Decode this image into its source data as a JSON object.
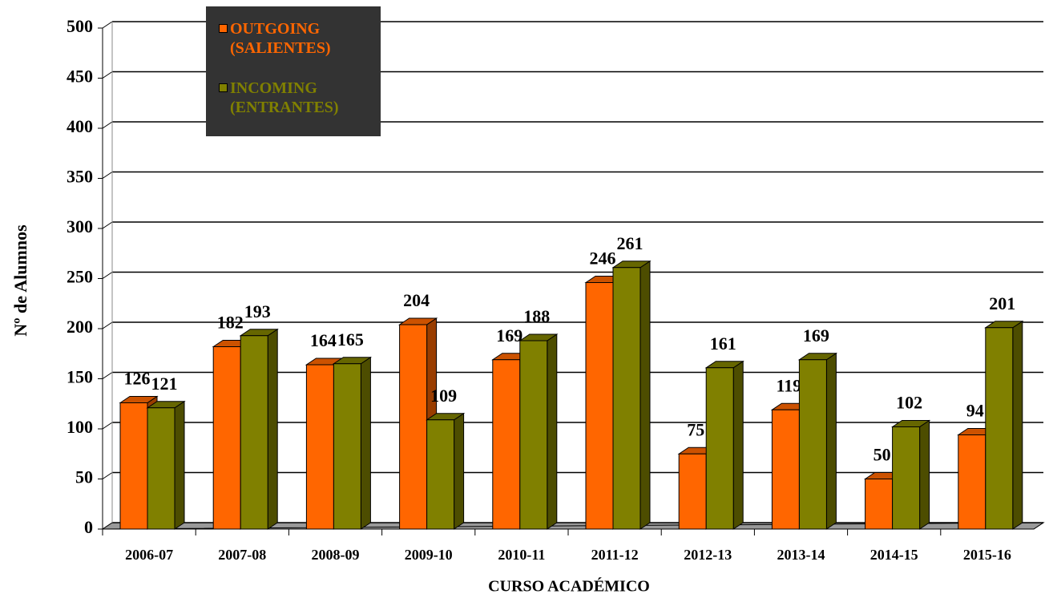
{
  "chart_data": {
    "type": "bar3d",
    "categories": [
      "2006-07",
      "2007-08",
      "2008-09",
      "2009-10",
      "2010-11",
      "2011-12",
      "2012-13",
      "2013-14",
      "2014-15",
      "2015-16"
    ],
    "series": [
      {
        "name": "OUTGOING (SALIENTES)",
        "color": "#ff6600",
        "values": [
          126,
          182,
          164,
          204,
          169,
          246,
          75,
          119,
          50,
          94
        ]
      },
      {
        "name": "INCOMING (ENTRANTES)",
        "color": "#808000",
        "values": [
          121,
          193,
          165,
          109,
          188,
          261,
          161,
          169,
          102,
          201
        ]
      }
    ],
    "ylabel": "Nº de Alumnos",
    "xlabel": "CURSO ACADÉMICO",
    "ylim": [
      0,
      500
    ],
    "yticks": [
      0,
      50,
      100,
      150,
      200,
      250,
      300,
      350,
      400,
      450,
      500
    ],
    "grid": true,
    "legend": "top-left"
  }
}
